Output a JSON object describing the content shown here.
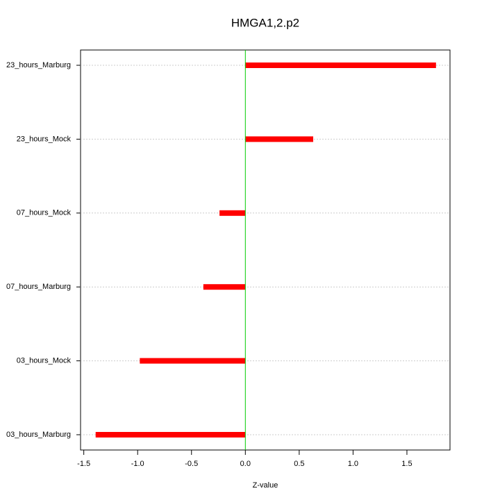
{
  "chart_data": {
    "type": "hbar",
    "title": "HMGA1,2.p2",
    "x_label": "Z-value",
    "categories": [
      "03_hours_Marburg",
      "03_hours_Mock",
      "07_hours_Marburg",
      "07_hours_Mock",
      "23_hours_Mock",
      "23_hours_Marburg"
    ],
    "values": [
      -1.39,
      -0.98,
      -0.39,
      -0.24,
      0.63,
      1.77
    ],
    "color": "#ff0000",
    "xlim": [
      -1.53,
      1.9
    ],
    "xticks": [
      -1.5,
      {
        "value": -1,
        "label": "-1.0"
      },
      -0.5,
      {
        "value": 0,
        "label": "0.0"
      },
      0.5,
      {
        "value": 1,
        "label": "1.0"
      },
      1.5
    ],
    "reference_line": {
      "value": 0,
      "color": "#00cc00"
    },
    "grid": true
  }
}
